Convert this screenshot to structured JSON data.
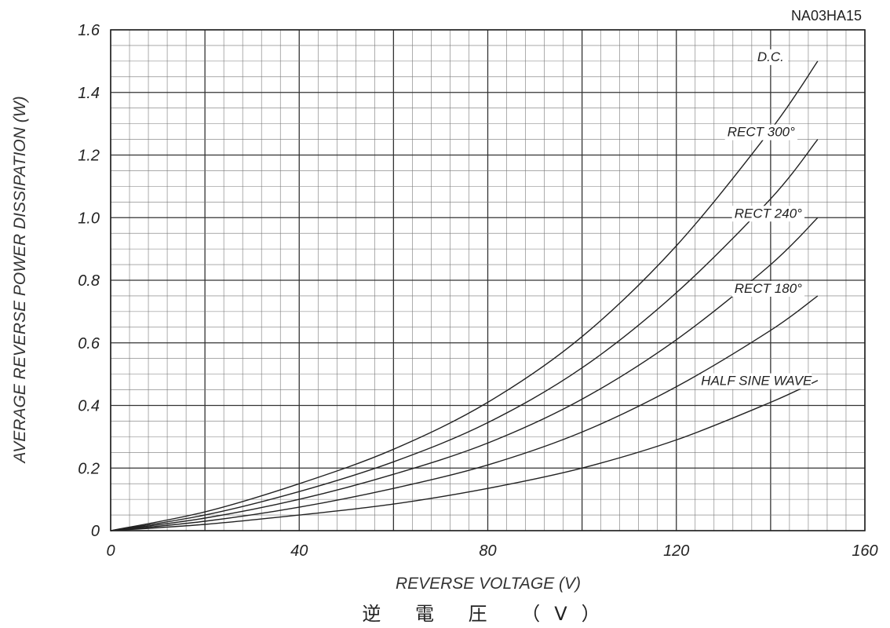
{
  "chart_data": {
    "type": "line",
    "code": "NA03HA15",
    "xlabel": "REVERSE VOLTAGE (V)",
    "xlabel_jp": "逆 電 圧 （V）",
    "ylabel": "AVERAGE REVERSE POWER DISSIPATION (W)",
    "xlim": [
      0,
      160
    ],
    "ylim": [
      0,
      1.6
    ],
    "x_ticks": [
      "0",
      "40",
      "80",
      "120",
      "160"
    ],
    "y_ticks": [
      "0",
      "0.2",
      "0.4",
      "0.6",
      "0.8",
      "1.0",
      "1.2",
      "1.4",
      "1.6"
    ],
    "grid": true,
    "series": [
      {
        "name": "D.C.",
        "x": [
          0,
          20,
          40,
          60,
          80,
          100,
          120,
          140,
          150
        ],
        "y": [
          0,
          0.06,
          0.15,
          0.26,
          0.41,
          0.62,
          0.91,
          1.28,
          1.5
        ]
      },
      {
        "name": "RECT 300°",
        "x": [
          0,
          20,
          40,
          60,
          80,
          100,
          120,
          140,
          150
        ],
        "y": [
          0,
          0.05,
          0.125,
          0.22,
          0.345,
          0.52,
          0.76,
          1.06,
          1.25
        ]
      },
      {
        "name": "RECT 240°",
        "x": [
          0,
          20,
          40,
          60,
          80,
          100,
          120,
          140,
          150
        ],
        "y": [
          0,
          0.04,
          0.1,
          0.18,
          0.28,
          0.42,
          0.61,
          0.85,
          1.0
        ]
      },
      {
        "name": "RECT 180°",
        "x": [
          0,
          20,
          40,
          60,
          80,
          100,
          120,
          140,
          150
        ],
        "y": [
          0,
          0.03,
          0.075,
          0.135,
          0.21,
          0.315,
          0.46,
          0.64,
          0.75
        ]
      },
      {
        "name": "HALF SINE WAVE",
        "x": [
          0,
          20,
          40,
          60,
          80,
          100,
          120,
          140,
          150
        ],
        "y": [
          0,
          0.02,
          0.05,
          0.085,
          0.135,
          0.2,
          0.29,
          0.41,
          0.48
        ]
      }
    ]
  }
}
